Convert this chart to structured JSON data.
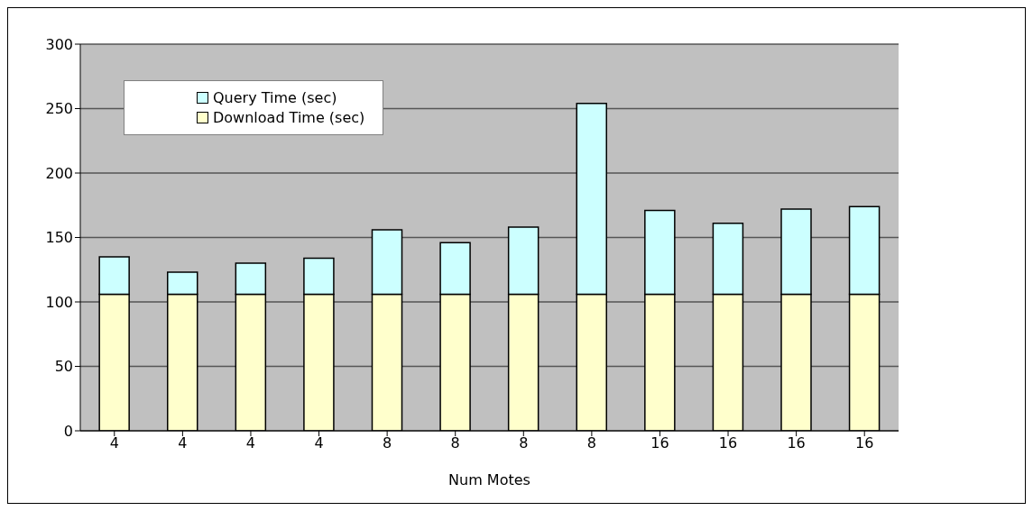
{
  "chart_data": {
    "type": "bar",
    "xlabel": "Num Motes",
    "categories": [
      "4",
      "4",
      "4",
      "4",
      "8",
      "8",
      "8",
      "8",
      "16",
      "16",
      "16",
      "16"
    ],
    "stacked": true,
    "series": [
      {
        "name": "Download Time (sec)",
        "color": "#ffffcc",
        "values": [
          106,
          106,
          106,
          106,
          106,
          106,
          106,
          106,
          106,
          106,
          106,
          106
        ]
      },
      {
        "name": "Query Time (sec)",
        "color": "#ccffff",
        "values": [
          29,
          17,
          24,
          28,
          50,
          40,
          52,
          148,
          65,
          55,
          66,
          68
        ]
      }
    ],
    "ylim": [
      0,
      300
    ],
    "yticks": [
      0,
      50,
      100,
      150,
      200,
      250,
      300
    ],
    "grid": "y",
    "legend": "top left"
  }
}
